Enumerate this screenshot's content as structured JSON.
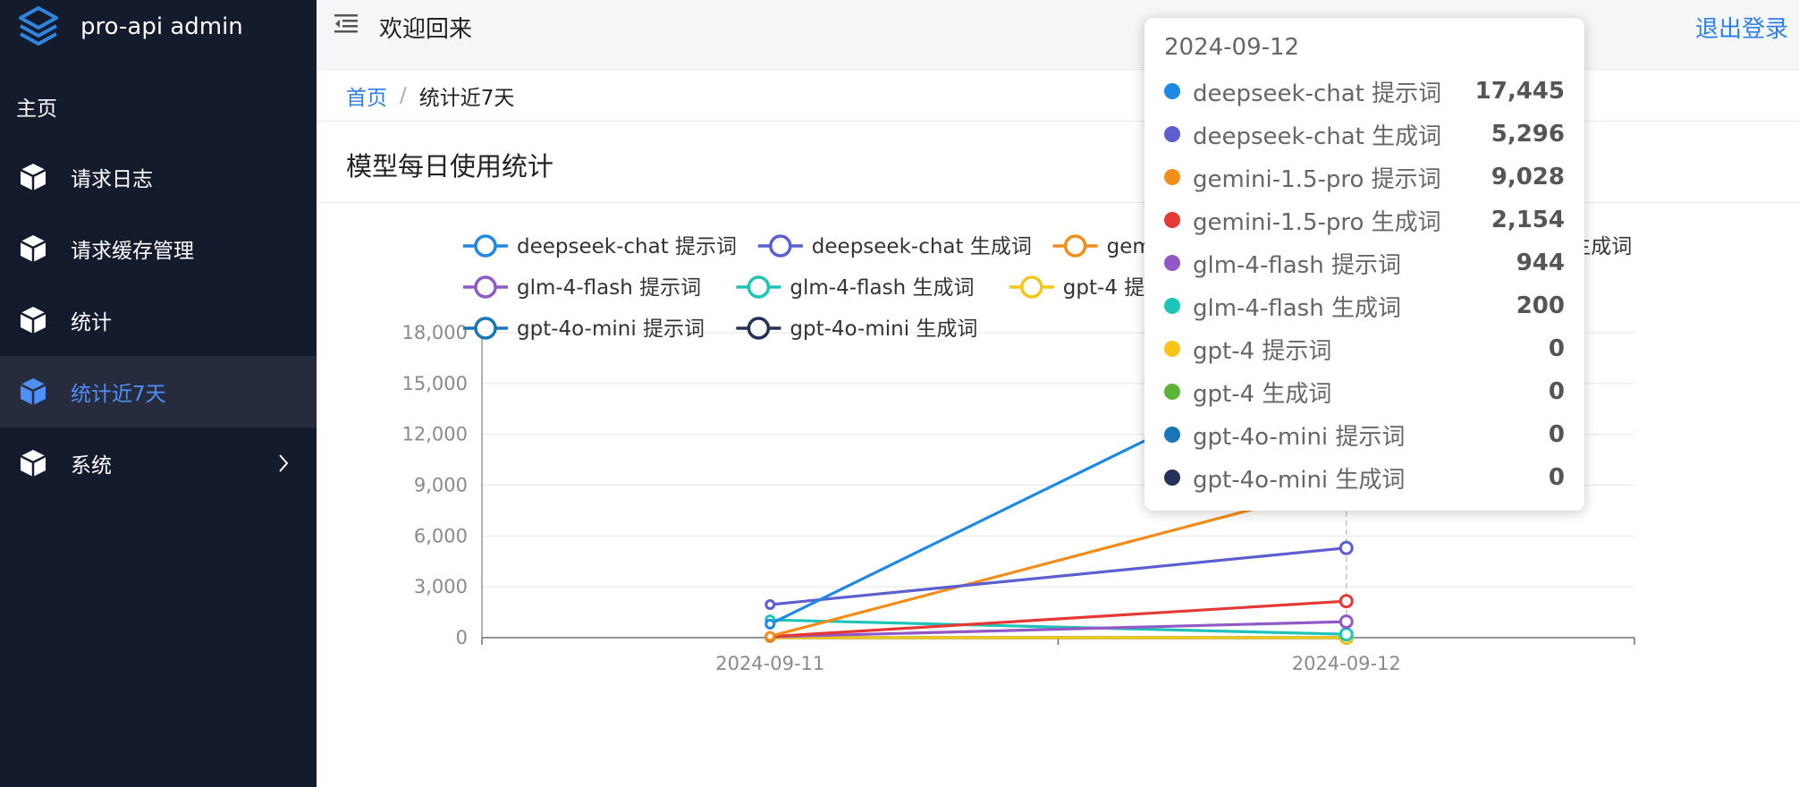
{
  "sidebar": {
    "brand": "pro-api admin",
    "home_label": "主页",
    "items": [
      {
        "label": "请求日志",
        "active": false
      },
      {
        "label": "请求缓存管理",
        "active": false
      },
      {
        "label": "统计",
        "active": false
      },
      {
        "label": "统计近7天",
        "active": true
      },
      {
        "label": "系统",
        "active": false,
        "has_children": true
      }
    ]
  },
  "header": {
    "welcome": "欢迎回来",
    "logout": "退出登录"
  },
  "breadcrumb": {
    "home": "首页",
    "separator": "/",
    "current": "统计近7天"
  },
  "card": {
    "title": "模型每日使用统计"
  },
  "colors": {
    "sidebar_bg": "#141b2d",
    "active_item_bg": "#262c3d",
    "accent": "#4f8ff7",
    "link": "#2d7ee6"
  },
  "chart_data": {
    "type": "line",
    "title": "",
    "xlabel": "",
    "ylabel": "",
    "x": [
      "2024-09-11",
      "2024-09-12"
    ],
    "ylim": [
      0,
      18000
    ],
    "yticks": [
      0,
      3000,
      6000,
      9000,
      12000,
      15000,
      18000
    ],
    "ytick_labels": [
      "0",
      "3,000",
      "6,000",
      "9,000",
      "12,000",
      "15,000",
      "18,000"
    ],
    "grid": true,
    "legend_position": "top",
    "series": [
      {
        "name": "deepseek-chat 提示词",
        "color": "#1e88e5",
        "values": [
          800,
          17445
        ]
      },
      {
        "name": "deepseek-chat 生成词",
        "color": "#5b5fcf",
        "values": [
          1950,
          5296
        ]
      },
      {
        "name": "gemini-1.5-pro 提示词",
        "color": "#f28c1a",
        "values": [
          80,
          9028
        ]
      },
      {
        "name": "gemini-1.5-pro 生成词",
        "color": "#e53935",
        "values": [
          60,
          2154
        ]
      },
      {
        "name": "glm-4-flash 提示词",
        "color": "#9159c6",
        "values": [
          50,
          944
        ]
      },
      {
        "name": "glm-4-flash 生成词",
        "color": "#1fc4b8",
        "values": [
          1050,
          200
        ]
      },
      {
        "name": "gpt-4 提示词",
        "color": "#f5c518",
        "values": [
          0,
          0
        ]
      },
      {
        "name": "gpt-4 生成词",
        "color": "#5cb338",
        "values": [
          0,
          0
        ]
      },
      {
        "name": "gpt-4o-mini 提示词",
        "color": "#1976b8",
        "values": [
          0,
          0
        ]
      },
      {
        "name": "gpt-4o-mini 生成词",
        "color": "#243259",
        "values": [
          0,
          0
        ]
      }
    ]
  },
  "tooltip": {
    "date": "2024-09-12",
    "rows": [
      {
        "name": "deepseek-chat 提示词",
        "value": "17,445",
        "color": "#1e88e5"
      },
      {
        "name": "deepseek-chat 生成词",
        "value": "5,296",
        "color": "#5b5fcf"
      },
      {
        "name": "gemini-1.5-pro 提示词",
        "value": "9,028",
        "color": "#f28c1a"
      },
      {
        "name": "gemini-1.5-pro 生成词",
        "value": "2,154",
        "color": "#e53935"
      },
      {
        "name": "glm-4-flash 提示词",
        "value": "944",
        "color": "#9159c6"
      },
      {
        "name": "glm-4-flash 生成词",
        "value": "200",
        "color": "#1fc4b8"
      },
      {
        "name": "gpt-4 提示词",
        "value": "0",
        "color": "#f5c518"
      },
      {
        "name": "gpt-4 生成词",
        "value": "0",
        "color": "#5cb338"
      },
      {
        "name": "gpt-4o-mini 提示词",
        "value": "0",
        "color": "#1976b8"
      },
      {
        "name": "gpt-4o-mini 生成词",
        "value": "0",
        "color": "#243259"
      }
    ]
  }
}
